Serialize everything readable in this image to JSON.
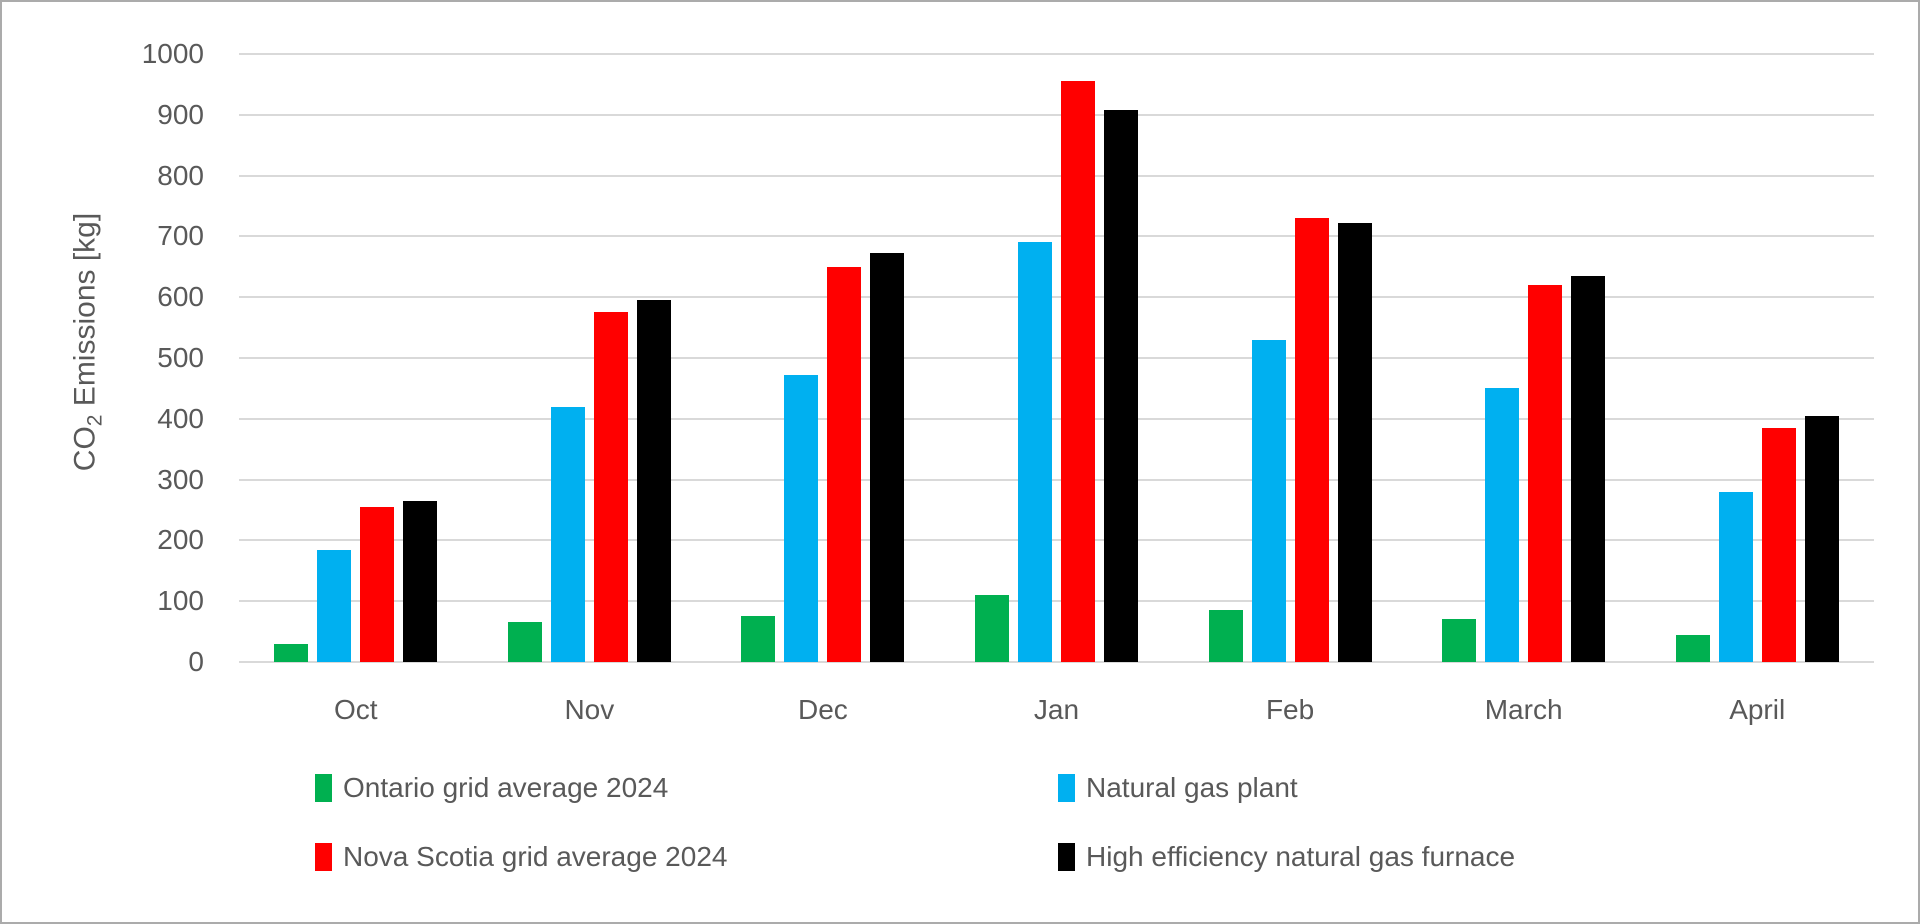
{
  "chart_data": {
    "type": "bar",
    "title": "",
    "xlabel": "",
    "ylabel": "CO₂ Emissions [kg]",
    "ylabel_base": "CO",
    "ylabel_sub": "2",
    "ylabel_rest": " Emissions [kg]",
    "ylim": [
      0,
      1000
    ],
    "ytick_step": 100,
    "ytick_labels": [
      "0",
      "100",
      "200",
      "300",
      "400",
      "500",
      "600",
      "700",
      "800",
      "900",
      "1000"
    ],
    "grid": true,
    "legend_position": "bottom",
    "categories": [
      "Oct",
      "Nov",
      "Dec",
      "Jan",
      "Feb",
      "March",
      "April"
    ],
    "series": [
      {
        "name": "Ontario grid average 2024",
        "color": "#00B050",
        "values": [
          30,
          65,
          75,
          110,
          85,
          70,
          45
        ]
      },
      {
        "name": "Natural gas plant",
        "color": "#00B0F0",
        "values": [
          185,
          420,
          472,
          690,
          530,
          450,
          280
        ]
      },
      {
        "name": "Nova Scotia grid average 2024",
        "color": "#FF0000",
        "values": [
          255,
          575,
          650,
          955,
          730,
          620,
          385
        ]
      },
      {
        "name": "High efficiency natural gas furnace",
        "color": "#000000",
        "values": [
          265,
          595,
          672,
          908,
          722,
          635,
          405
        ]
      }
    ],
    "colors": {
      "axis_text": "#595959",
      "gridline": "#D9D9D9",
      "frame_border": "#ABABAB",
      "background": "#FFFFFF"
    }
  }
}
